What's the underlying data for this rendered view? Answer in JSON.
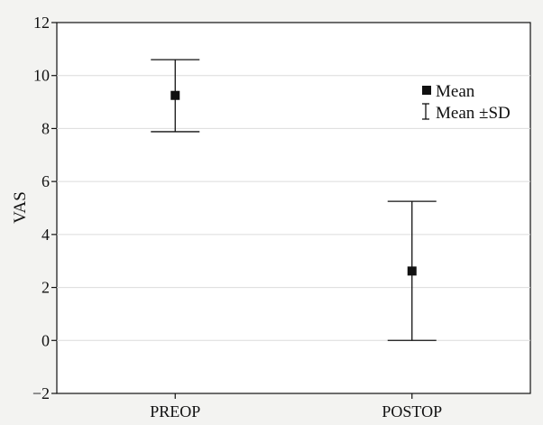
{
  "chart_data": {
    "type": "scatter",
    "title": "",
    "xlabel": "",
    "ylabel": "VAS",
    "categories": [
      "PREOP",
      "POSTOP"
    ],
    "mean": [
      9.25,
      2.62
    ],
    "sd_lower": [
      7.88,
      0.0
    ],
    "sd_upper": [
      10.6,
      5.25
    ],
    "ylim": [
      -2,
      12
    ],
    "yticks": [
      "−2",
      "0",
      "2",
      "4",
      "6",
      "8",
      "10",
      "12"
    ],
    "ytick_values": [
      -2,
      0,
      2,
      4,
      6,
      8,
      10,
      12
    ],
    "grid": true,
    "legend": {
      "placement": "top-right",
      "entries": [
        {
          "marker": "square",
          "label": "Mean"
        },
        {
          "marker": "errorbar",
          "label": "Mean ±SD"
        }
      ]
    },
    "colors": {
      "marker": "#111111",
      "grid": "#dcdcdc",
      "background": "#f3f3f1",
      "plot": "#ffffff"
    }
  }
}
